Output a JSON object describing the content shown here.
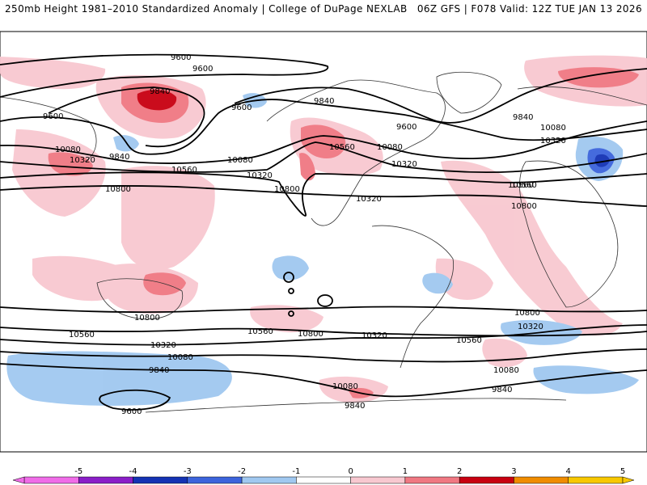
{
  "header": {
    "left_title": "250mb Height 1981–2010 Standardized Anomaly | College of DuPage NEXLAB",
    "right_title": "06Z GFS | F078 Valid: 12Z TUE JAN 13 2026"
  },
  "map": {
    "contour_labels": [
      "9600",
      "9600",
      "9840",
      "9600",
      "9600",
      "9840",
      "10080",
      "10320",
      "9840",
      "10080",
      "10320",
      "10800",
      "10560",
      "10320",
      "10800",
      "10560",
      "10080",
      "9600",
      "10320",
      "9840",
      "10080",
      "10320",
      "10560",
      "10800",
      "10800",
      "10560",
      "10320",
      "10080",
      "9840",
      "10560",
      "10800",
      "10320",
      "10560",
      "10800",
      "10320",
      "10560",
      "10080",
      "9840",
      "10080",
      "9840",
      "9600"
    ],
    "landmarks": {
      "shading": "standardized anomaly",
      "contours": "250mb height (m)"
    }
  },
  "colorbar": {
    "ticks": [
      "-5",
      "-4",
      "-3",
      "-2",
      "-1",
      "0",
      "1",
      "2",
      "3",
      "4",
      "5"
    ],
    "colors": [
      "#f06ce8",
      "#8a1ec8",
      "#1432b4",
      "#3c64dc",
      "#a0c8f0",
      "#ffffff",
      "#f8c8d0",
      "#f07882",
      "#c80010",
      "#f08c00",
      "#f8c800"
    ]
  }
}
